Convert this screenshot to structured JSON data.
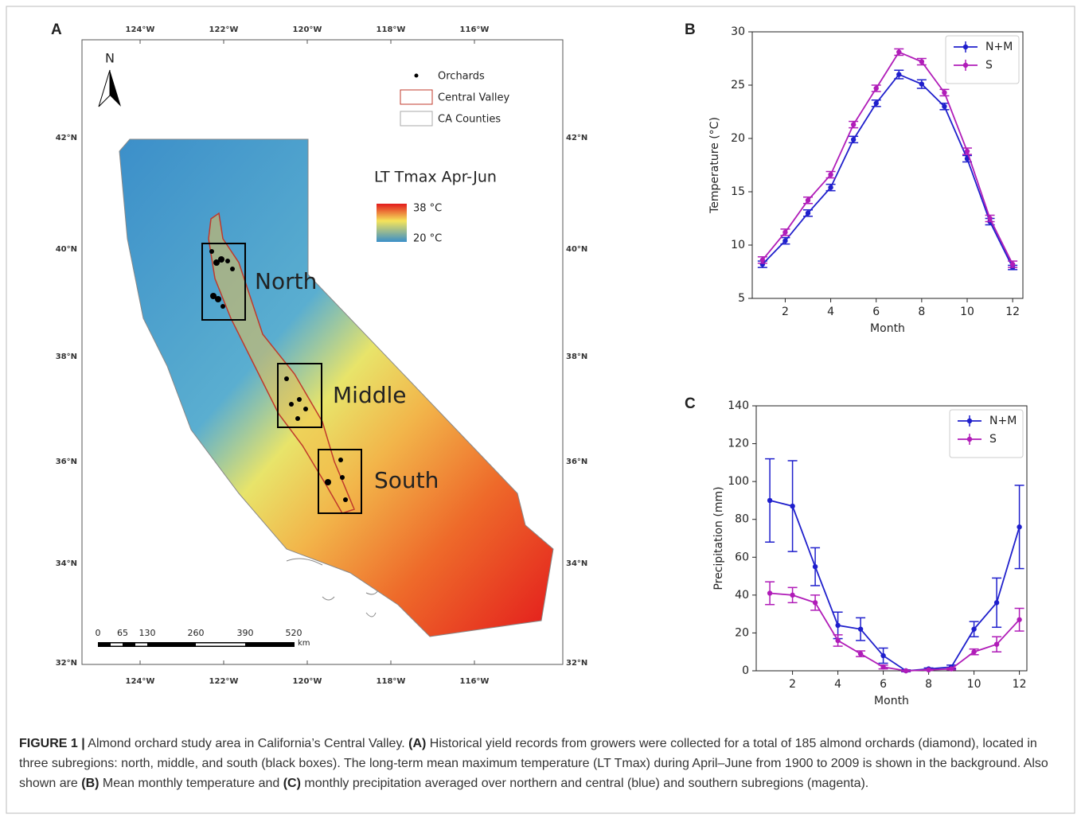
{
  "map": {
    "panel": "A",
    "lon_ticks": [
      "124°W",
      "122°W",
      "120°W",
      "118°W",
      "116°W"
    ],
    "lat_ticks": [
      "42°N",
      "40°N",
      "38°N",
      "36°N",
      "34°N",
      "32°N"
    ],
    "north": "N",
    "legend": [
      "Orchards",
      "Central Valley",
      "CA Counties"
    ],
    "colorbar_title": "LT Tmax  Apr-Jun",
    "colorbar_max": "38 °C",
    "colorbar_min": "20 °C",
    "regions": [
      "North",
      "Middle",
      "South"
    ],
    "scale": [
      "0",
      "65",
      "130",
      "260",
      "390",
      "520"
    ],
    "scale_unit": "km"
  },
  "chart_data": [
    {
      "type": "line",
      "panel": "B",
      "xlabel": "Month",
      "ylabel": "Temperature (°C)",
      "x": [
        1,
        2,
        3,
        4,
        5,
        6,
        7,
        8,
        9,
        10,
        11,
        12
      ],
      "series": [
        {
          "name": "N+M",
          "color": "#1f1fcc",
          "values": [
            8.2,
            10.4,
            13.0,
            15.4,
            19.9,
            23.3,
            26.0,
            25.1,
            23.0,
            18.1,
            12.2,
            7.9
          ],
          "errors": [
            0.3,
            0.3,
            0.3,
            0.3,
            0.3,
            0.3,
            0.4,
            0.4,
            0.3,
            0.3,
            0.3,
            0.2
          ]
        },
        {
          "name": "S",
          "color": "#b01cb8",
          "values": [
            8.6,
            11.2,
            14.2,
            16.6,
            21.3,
            24.7,
            28.1,
            27.2,
            24.3,
            18.8,
            12.5,
            8.2
          ],
          "errors": [
            0.3,
            0.3,
            0.3,
            0.3,
            0.3,
            0.3,
            0.3,
            0.3,
            0.3,
            0.3,
            0.3,
            0.3
          ]
        }
      ],
      "xlim": [
        0.55,
        12.45
      ],
      "xticks": [
        2,
        4,
        6,
        8,
        10,
        12
      ],
      "ylim": [
        5,
        30
      ],
      "yticks": [
        5,
        10,
        15,
        20,
        25,
        30
      ],
      "legend": "upper right"
    },
    {
      "type": "line",
      "panel": "C",
      "xlabel": "Month",
      "ylabel": "Precipitation (mm)",
      "x": [
        1,
        2,
        3,
        4,
        5,
        6,
        7,
        8,
        9,
        10,
        11,
        12
      ],
      "series": [
        {
          "name": "N+M",
          "color": "#1f1fcc",
          "values": [
            90,
            87,
            55,
            24,
            22,
            8,
            0,
            1,
            2,
            22,
            36,
            76
          ],
          "errors": [
            22,
            24,
            10,
            7,
            6,
            4,
            0.5,
            0.5,
            1,
            4,
            13,
            22
          ]
        },
        {
          "name": "S",
          "color": "#b01cb8",
          "values": [
            41,
            40,
            36,
            16,
            9,
            2,
            0,
            0.5,
            1,
            10,
            14,
            27
          ],
          "errors": [
            6,
            4,
            4,
            3,
            1.5,
            1,
            0.3,
            0.3,
            0.5,
            1.5,
            4,
            6
          ]
        }
      ],
      "xlim": [
        0.4,
        12.33
      ],
      "xticks": [
        2,
        4,
        6,
        8,
        10,
        12
      ],
      "ylim": [
        0,
        140
      ],
      "yticks": [
        0,
        20,
        40,
        60,
        80,
        100,
        120,
        140
      ],
      "legend": "upper right"
    }
  ],
  "caption": {
    "parts": [
      "FIGURE 1 |",
      " Almond orchard study area in California’s Central Valley. ",
      "(A)",
      " Historical yield records from growers were collected for a total of 185 almond orchards (diamond), located in three subregions: north, middle, and south (black boxes). The long-term mean maximum temperature (LT Tmax) during April–June from 1900 to 2009 is shown in the background. Also shown are ",
      "(B)",
      " Mean monthly temperature and ",
      "(C)",
      " monthly precipitation averaged over northern and central (blue) and southern subregions (magenta)."
    ]
  }
}
